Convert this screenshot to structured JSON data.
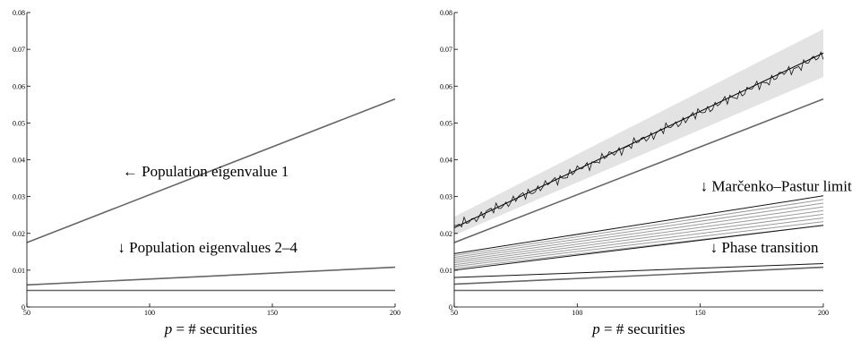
{
  "chart_data": [
    {
      "type": "line",
      "xlabel_parts": [
        "p",
        " = # securities"
      ],
      "xlim": [
        50,
        200
      ],
      "ylim": [
        0,
        0.08
      ],
      "xticks": [
        "50",
        "100",
        "150",
        "200"
      ],
      "yticks": [
        "0",
        "0.01",
        "0.02",
        "0.03",
        "0.04",
        "0.05",
        "0.06",
        "0.07",
        "0.08"
      ],
      "series": [
        {
          "kind": "population",
          "x": [
            50,
            200
          ],
          "y": [
            0.0175,
            0.0565
          ],
          "color": "#666666"
        },
        {
          "kind": "population",
          "x": [
            50,
            200
          ],
          "y": [
            0.006,
            0.0108
          ],
          "color": "#666666"
        },
        {
          "kind": "population",
          "x": [
            50,
            200
          ],
          "y": [
            0.0045,
            0.0045
          ],
          "color": "#666666"
        }
      ],
      "annotations": [
        {
          "text": "← Population eigenvalue 1",
          "x": 89,
          "y": 0.0355
        },
        {
          "text": "↓ Population eigenvalues 2–4",
          "x": 87,
          "y": 0.0148
        }
      ]
    },
    {
      "type": "line",
      "xlabel_parts": [
        "p",
        " = # securities"
      ],
      "xlim": [
        50,
        200
      ],
      "ylim": [
        0,
        0.08
      ],
      "xticks": [
        "50",
        "100",
        "150",
        "200"
      ],
      "yticks": [
        "0",
        "0.01",
        "0.02",
        "0.03",
        "0.04",
        "0.05",
        "0.06",
        "0.07",
        "0.08"
      ],
      "band": {
        "x": [
          50,
          200
        ],
        "lower": [
          0.0195,
          0.0625
        ],
        "upper": [
          0.0245,
          0.0755
        ],
        "color": "#e3e3e3"
      },
      "empirical": {
        "x_start": 50,
        "x_end": 200,
        "y_start": 0.0215,
        "y_end": 0.0685,
        "color": "#111111"
      },
      "series": [
        {
          "kind": "limit",
          "x": [
            50,
            200
          ],
          "y": [
            0.0215,
            0.069
          ],
          "color": "#000000"
        },
        {
          "kind": "population",
          "x": [
            50,
            200
          ],
          "y": [
            0.0175,
            0.0565
          ],
          "color": "#666666"
        },
        {
          "kind": "bulk_edge",
          "x": [
            50,
            200
          ],
          "y": [
            0.0145,
            0.0302
          ],
          "color": "#111111"
        },
        {
          "kind": "bulk",
          "x": [
            50,
            200
          ],
          "y": [
            0.014,
            0.0292
          ],
          "color": "#9a9a9a"
        },
        {
          "kind": "bulk",
          "x": [
            50,
            200
          ],
          "y": [
            0.0135,
            0.0282
          ],
          "color": "#9a9a9a"
        },
        {
          "kind": "bulk",
          "x": [
            50,
            200
          ],
          "y": [
            0.013,
            0.0272
          ],
          "color": "#9a9a9a"
        },
        {
          "kind": "bulk",
          "x": [
            50,
            200
          ],
          "y": [
            0.0125,
            0.0262
          ],
          "color": "#9a9a9a"
        },
        {
          "kind": "bulk",
          "x": [
            50,
            200
          ],
          "y": [
            0.012,
            0.0252
          ],
          "color": "#9a9a9a"
        },
        {
          "kind": "bulk",
          "x": [
            50,
            200
          ],
          "y": [
            0.0115,
            0.0242
          ],
          "color": "#9a9a9a"
        },
        {
          "kind": "bulk",
          "x": [
            50,
            200
          ],
          "y": [
            0.011,
            0.0232
          ],
          "color": "#9a9a9a"
        },
        {
          "kind": "bulk",
          "x": [
            50,
            200
          ],
          "y": [
            0.0105,
            0.0222
          ],
          "color": "#9a9a9a"
        },
        {
          "kind": "bulk_edge",
          "x": [
            50,
            200
          ],
          "y": [
            0.01,
            0.0222
          ],
          "color": "#111111"
        },
        {
          "kind": "transition",
          "x": [
            50,
            200
          ],
          "y": [
            0.008,
            0.0118
          ],
          "color": "#111111"
        },
        {
          "kind": "population",
          "x": [
            50,
            200
          ],
          "y": [
            0.0062,
            0.0108
          ],
          "color": "#666666"
        },
        {
          "kind": "population",
          "x": [
            50,
            200
          ],
          "y": [
            0.0045,
            0.0045
          ],
          "color": "#666666"
        }
      ],
      "annotations": [
        {
          "text": "↓ Marčenko–Pastur limit",
          "x": 150,
          "y": 0.0315
        },
        {
          "text": "↓ Phase transition",
          "x": 154,
          "y": 0.0148
        }
      ]
    }
  ]
}
